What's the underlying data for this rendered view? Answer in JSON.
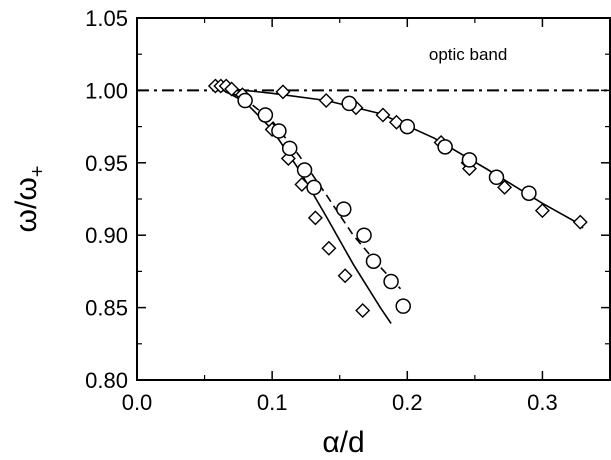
{
  "chart_data": {
    "type": "scatter",
    "title": "",
    "xlabel": "α/d",
    "ylabel_main": "ω/ω",
    "ylabel_sub": "+",
    "xlim": [
      0.0,
      0.35
    ],
    "ylim": [
      0.8,
      1.05
    ],
    "x_ticks": [
      0.0,
      0.1,
      0.2,
      0.3
    ],
    "x_tick_labels": [
      "0.0",
      "0.1",
      "0.2",
      "0.3"
    ],
    "y_ticks": [
      0.8,
      0.85,
      0.9,
      0.95,
      1.0,
      1.05
    ],
    "y_tick_labels": [
      "0.80",
      "0.85",
      "0.90",
      "0.95",
      "1.00",
      "1.05"
    ],
    "grid": false,
    "annotations": [
      {
        "text": "optic band",
        "x": 0.245,
        "y": 1.025
      }
    ],
    "reference_line": {
      "y": 1.0,
      "style": "dash-dot"
    },
    "series": [
      {
        "marker": "diamond",
        "points": [
          [
            0.058,
            1.003
          ],
          [
            0.062,
            1.003
          ],
          [
            0.066,
            1.003
          ],
          [
            0.07,
            1.001
          ],
          [
            0.078,
            0.997
          ],
          [
            0.108,
            0.999
          ],
          [
            0.14,
            0.993
          ],
          [
            0.162,
            0.988
          ],
          [
            0.182,
            0.983
          ],
          [
            0.192,
            0.978
          ],
          [
            0.225,
            0.964
          ],
          [
            0.245,
            0.95
          ],
          [
            0.246,
            0.946
          ],
          [
            0.272,
            0.933
          ],
          [
            0.3,
            0.917
          ],
          [
            0.328,
            0.909
          ]
        ]
      },
      {
        "marker": "circle",
        "points": [
          [
            0.08,
            0.993
          ],
          [
            0.157,
            0.991
          ],
          [
            0.2,
            0.975
          ],
          [
            0.228,
            0.961
          ],
          [
            0.246,
            0.952
          ],
          [
            0.266,
            0.94
          ],
          [
            0.29,
            0.929
          ]
        ]
      },
      {
        "marker": "diamond",
        "points": [
          [
            0.1,
            0.973
          ],
          [
            0.112,
            0.953
          ],
          [
            0.122,
            0.935
          ],
          [
            0.132,
            0.912
          ],
          [
            0.142,
            0.891
          ],
          [
            0.154,
            0.872
          ],
          [
            0.167,
            0.848
          ]
        ]
      },
      {
        "marker": "circle",
        "points": [
          [
            0.095,
            0.983
          ],
          [
            0.105,
            0.972
          ],
          [
            0.113,
            0.96
          ],
          [
            0.124,
            0.945
          ],
          [
            0.131,
            0.933
          ],
          [
            0.153,
            0.918
          ],
          [
            0.168,
            0.9
          ],
          [
            0.175,
            0.882
          ],
          [
            0.188,
            0.868
          ],
          [
            0.197,
            0.851
          ]
        ]
      }
    ],
    "curves": [
      {
        "style": "solid",
        "points": [
          [
            0.07,
            1.001
          ],
          [
            0.1,
            0.998
          ],
          [
            0.14,
            0.993
          ],
          [
            0.18,
            0.984
          ],
          [
            0.22,
            0.967
          ],
          [
            0.26,
            0.945
          ],
          [
            0.3,
            0.922
          ],
          [
            0.325,
            0.909
          ],
          [
            0.33,
            0.905
          ]
        ]
      },
      {
        "style": "solid",
        "points": [
          [
            0.06,
            1.002
          ],
          [
            0.08,
            0.992
          ],
          [
            0.1,
            0.973
          ],
          [
            0.12,
            0.945
          ],
          [
            0.14,
            0.913
          ],
          [
            0.16,
            0.88
          ],
          [
            0.18,
            0.85
          ],
          [
            0.188,
            0.839
          ]
        ]
      },
      {
        "style": "dashed",
        "points": [
          [
            0.06,
            1.002
          ],
          [
            0.08,
            0.994
          ],
          [
            0.1,
            0.979
          ],
          [
            0.12,
            0.955
          ],
          [
            0.14,
            0.928
          ],
          [
            0.16,
            0.9
          ],
          [
            0.18,
            0.878
          ],
          [
            0.195,
            0.863
          ]
        ]
      }
    ]
  }
}
